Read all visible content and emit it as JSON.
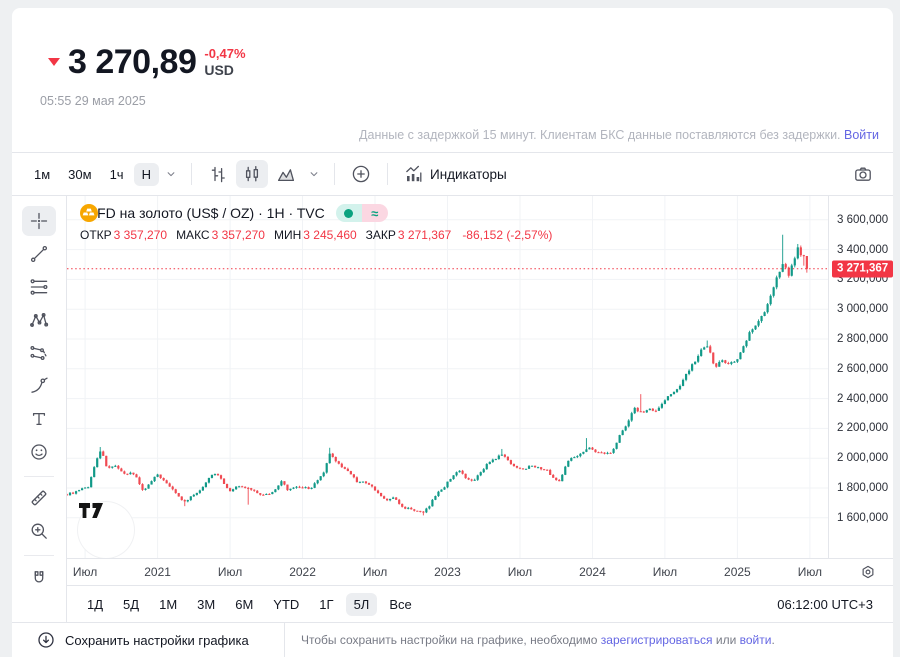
{
  "colors": {
    "up": "#119988",
    "down": "#f04a52",
    "accent_red": "#f23645",
    "link": "#6466e3",
    "gold": "#f7a600"
  },
  "header": {
    "price": "3 270,89",
    "change": "-0,47%",
    "currency": "USD",
    "datetime": "05:55 29 мая 2025",
    "notice": "Данные с задержкой 15 минут. Клиентам БКС данные поставляются без задержки.",
    "notice_link": "Войти"
  },
  "toolbar": {
    "intervals": [
      {
        "label": "1м",
        "selected": false
      },
      {
        "label": "30м",
        "selected": false
      },
      {
        "label": "1ч",
        "selected": false
      },
      {
        "label": "Н",
        "selected": true
      }
    ],
    "chart_types": [
      {
        "name": "bars",
        "selected": false
      },
      {
        "name": "candles",
        "selected": true
      },
      {
        "name": "area",
        "selected": false
      }
    ],
    "indicators_label": "Индикаторы"
  },
  "sidebar": {
    "tools": [
      {
        "name": "crosshair",
        "selected": true
      },
      {
        "name": "trend-line"
      },
      {
        "name": "fib-retracement"
      },
      {
        "name": "xabcd-pattern"
      },
      {
        "name": "forecast"
      },
      {
        "name": "brush"
      },
      {
        "name": "text-tool"
      },
      {
        "name": "emoji"
      },
      {
        "sep": true
      },
      {
        "name": "ruler"
      },
      {
        "name": "zoom-in"
      },
      {
        "sep": true
      }
    ],
    "bottom_tool": "magnet"
  },
  "legend": {
    "title": "CFD на золото (US$ / OZ) · 1H · TVC",
    "ohlc": [
      {
        "k": "ОТКР",
        "v": "3 357,270"
      },
      {
        "k": "МАКС",
        "v": "3 357,270"
      },
      {
        "k": "МИН",
        "v": "3 245,460"
      },
      {
        "k": "ЗАКР",
        "v": "3 271,367"
      }
    ],
    "change": "-86,152 (-2,57%)"
  },
  "chart_data": {
    "type": "candlestick",
    "title": "CFD на золото (US$ / OZ) · 1H · TVC",
    "ylim": [
      1330,
      3760
    ],
    "months_range": [
      -1.5,
      61.5
    ],
    "candle_step": 0.25,
    "last_month": 59.85,
    "last_price": 3271.367,
    "last_price_label": "3 271,367",
    "last_candle": {
      "open": 3357.27,
      "high": 3357.27,
      "low": 3245.46,
      "close": 3271.367
    },
    "y_ticks": [
      {
        "v": 3600,
        "label": "3 600,000"
      },
      {
        "v": 3400,
        "label": "3 400,000"
      },
      {
        "v": 3200,
        "label": "3 200,000"
      },
      {
        "v": 3000,
        "label": "3 000,000"
      },
      {
        "v": 2800,
        "label": "2 800,000"
      },
      {
        "v": 2600,
        "label": "2 600,000"
      },
      {
        "v": 2400,
        "label": "2 400,000"
      },
      {
        "v": 2200,
        "label": "2 200,000"
      },
      {
        "v": 2000,
        "label": "2 000,000"
      },
      {
        "v": 1800,
        "label": "1 800,000"
      },
      {
        "v": 1600,
        "label": "1 600,000"
      }
    ],
    "x_ticks": [
      {
        "m": 0,
        "label": "Июл"
      },
      {
        "m": 6,
        "label": "2021"
      },
      {
        "m": 12,
        "label": "Июл"
      },
      {
        "m": 18,
        "label": "2022"
      },
      {
        "m": 24,
        "label": "Июл"
      },
      {
        "m": 30,
        "label": "2023"
      },
      {
        "m": 36,
        "label": "Июл"
      },
      {
        "m": 42,
        "label": "2024"
      },
      {
        "m": 48,
        "label": "Июл"
      },
      {
        "m": 54,
        "label": "2025"
      },
      {
        "m": 60,
        "label": "Июл"
      }
    ],
    "price_path": [
      [
        -1.5,
        1757
      ],
      [
        -0.8,
        1772
      ],
      [
        0.3,
        1812
      ],
      [
        0.9,
        1985
      ],
      [
        1.3,
        2058
      ],
      [
        1.8,
        1938
      ],
      [
        2.5,
        1942
      ],
      [
        3.2,
        1892
      ],
      [
        3.8,
        1906
      ],
      [
        4.3,
        1866
      ],
      [
        4.8,
        1778
      ],
      [
        5.5,
        1842
      ],
      [
        6.0,
        1896
      ],
      [
        6.5,
        1848
      ],
      [
        7.3,
        1792
      ],
      [
        7.8,
        1734
      ],
      [
        8.3,
        1702
      ],
      [
        8.8,
        1744
      ],
      [
        9.5,
        1778
      ],
      [
        10.2,
        1868
      ],
      [
        10.8,
        1900
      ],
      [
        11.3,
        1862
      ],
      [
        11.9,
        1772
      ],
      [
        12.5,
        1810
      ],
      [
        13.4,
        1800
      ],
      [
        14.0,
        1782
      ],
      [
        14.6,
        1752
      ],
      [
        15.2,
        1762
      ],
      [
        15.8,
        1792
      ],
      [
        16.3,
        1846
      ],
      [
        16.8,
        1784
      ],
      [
        17.4,
        1802
      ],
      [
        18.0,
        1806
      ],
      [
        18.6,
        1794
      ],
      [
        19.3,
        1852
      ],
      [
        19.8,
        1910
      ],
      [
        20.3,
        2038
      ],
      [
        20.7,
        1988
      ],
      [
        21.3,
        1936
      ],
      [
        21.9,
        1906
      ],
      [
        22.5,
        1844
      ],
      [
        23.1,
        1838
      ],
      [
        23.7,
        1812
      ],
      [
        24.3,
        1758
      ],
      [
        25.0,
        1714
      ],
      [
        25.6,
        1740
      ],
      [
        26.2,
        1670
      ],
      [
        26.9,
        1662
      ],
      [
        27.5,
        1642
      ],
      [
        28.0,
        1634
      ],
      [
        28.5,
        1682
      ],
      [
        29.1,
        1762
      ],
      [
        29.7,
        1804
      ],
      [
        30.3,
        1870
      ],
      [
        30.9,
        1924
      ],
      [
        31.5,
        1864
      ],
      [
        32.1,
        1840
      ],
      [
        32.8,
        1910
      ],
      [
        33.4,
        1976
      ],
      [
        34.0,
        1992
      ],
      [
        34.5,
        2030
      ],
      [
        35.1,
        1972
      ],
      [
        35.7,
        1942
      ],
      [
        36.3,
        1920
      ],
      [
        36.9,
        1960
      ],
      [
        37.5,
        1934
      ],
      [
        38.2,
        1922
      ],
      [
        38.8,
        1864
      ],
      [
        39.3,
        1840
      ],
      [
        39.9,
        1986
      ],
      [
        40.5,
        2004
      ],
      [
        41.2,
        2046
      ],
      [
        41.7,
        2070
      ],
      [
        42.3,
        2040
      ],
      [
        43.0,
        2030
      ],
      [
        43.6,
        2044
      ],
      [
        44.3,
        2160
      ],
      [
        44.9,
        2240
      ],
      [
        45.5,
        2336
      ],
      [
        46.1,
        2304
      ],
      [
        46.7,
        2334
      ],
      [
        47.3,
        2314
      ],
      [
        48.0,
        2390
      ],
      [
        48.7,
        2444
      ],
      [
        49.3,
        2498
      ],
      [
        49.9,
        2584
      ],
      [
        50.5,
        2652
      ],
      [
        51.1,
        2736
      ],
      [
        51.6,
        2744
      ],
      [
        52.1,
        2604
      ],
      [
        52.7,
        2662
      ],
      [
        53.3,
        2634
      ],
      [
        53.9,
        2650
      ],
      [
        54.5,
        2754
      ],
      [
        55.1,
        2860
      ],
      [
        55.7,
        2914
      ],
      [
        56.3,
        2996
      ],
      [
        56.9,
        3124
      ],
      [
        57.4,
        3240
      ],
      [
        57.8,
        3320
      ],
      [
        58.2,
        3224
      ],
      [
        58.6,
        3320
      ],
      [
        59.0,
        3408
      ],
      [
        59.3,
        3350
      ],
      [
        59.6,
        3290
      ],
      [
        59.85,
        3271.4
      ]
    ],
    "wick_events": [
      {
        "m": 1.3,
        "high": 2075
      },
      {
        "m": 8.3,
        "low": 1678
      },
      {
        "m": 13.6,
        "low": 1688
      },
      {
        "m": 20.3,
        "high": 2070
      },
      {
        "m": 28.0,
        "low": 1616
      },
      {
        "m": 34.5,
        "high": 2062
      },
      {
        "m": 41.6,
        "high": 2135
      },
      {
        "m": 46.0,
        "high": 2430
      },
      {
        "m": 51.4,
        "high": 2790
      },
      {
        "m": 57.7,
        "high": 3500
      },
      {
        "m": 59.0,
        "high": 3438
      }
    ]
  },
  "range_tabs": {
    "items": [
      "1Д",
      "5Д",
      "1М",
      "3М",
      "6М",
      "YTD",
      "1Г",
      "5Л",
      "Все"
    ],
    "selected": "5Л"
  },
  "clock": "06:12:00 UTC+3",
  "footer": {
    "save_button": "Сохранить настройки графика",
    "note_prefix": "Чтобы сохранить настройки на графике, необходимо ",
    "link_register": "зарегистрироваться",
    "note_middle": " или ",
    "link_login": "войти",
    "note_suffix": "."
  }
}
